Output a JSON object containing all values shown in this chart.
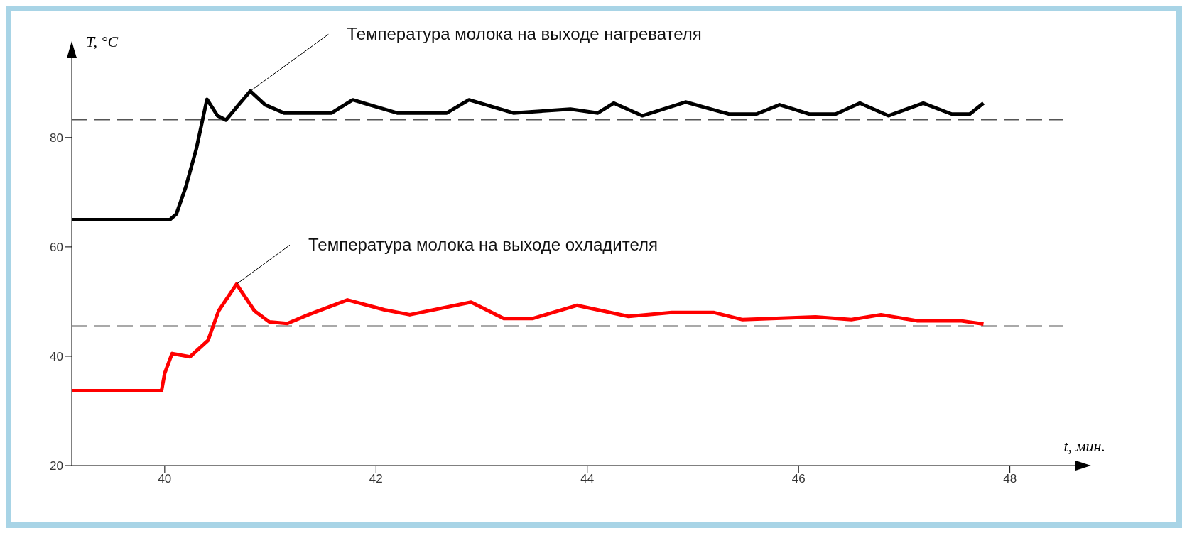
{
  "chart_data": {
    "type": "line",
    "xlabel": "t, мин.",
    "ylabel": "T, °C",
    "xlim": [
      39.12,
      48.5
    ],
    "ylim": [
      20,
      94
    ],
    "xticks": [
      40,
      42,
      44,
      46,
      48
    ],
    "yticks": [
      20,
      40,
      60,
      80
    ],
    "grid": false,
    "legend": false,
    "marker": "none",
    "line_style": "solid",
    "series": [
      {
        "color": "#000000",
        "x": [
          39.12,
          40.05,
          40.11,
          40.2,
          40.3,
          40.4,
          40.5,
          40.58,
          40.7,
          40.81,
          40.95,
          41.13,
          41.58,
          41.78,
          42.2,
          42.67,
          42.88,
          43.3,
          43.84,
          44.1,
          44.25,
          44.52,
          44.93,
          45.34,
          45.6,
          45.82,
          46.1,
          46.35,
          46.58,
          46.85,
          47.18,
          47.45,
          47.62,
          47.75
        ],
        "values": [
          65,
          65,
          66,
          71,
          78,
          87,
          84,
          83.2,
          86,
          88.5,
          86,
          84.5,
          84.5,
          86.9,
          84.5,
          84.5,
          86.9,
          84.5,
          85.2,
          84.5,
          86.3,
          84,
          86.5,
          84.3,
          84.3,
          86,
          84.3,
          84.3,
          86.3,
          84,
          86.3,
          84.3,
          84.3,
          86.3
        ]
      },
      {
        "color": "#ff0000",
        "x": [
          39.12,
          39.97,
          40.0,
          40.07,
          40.24,
          40.41,
          40.51,
          40.68,
          40.85,
          40.99,
          41.16,
          41.36,
          41.73,
          42.08,
          42.32,
          42.9,
          43.21,
          43.48,
          43.9,
          44.39,
          44.8,
          45.2,
          45.47,
          46.16,
          46.5,
          46.78,
          47.12,
          47.53,
          47.75
        ],
        "values": [
          33.7,
          33.7,
          36.9,
          40.5,
          39.9,
          42.9,
          48.3,
          53.2,
          48.3,
          46.3,
          46,
          47.6,
          50.3,
          48.5,
          47.6,
          49.9,
          46.9,
          46.9,
          49.3,
          47.3,
          48,
          48,
          46.7,
          47.2,
          46.7,
          47.6,
          46.5,
          46.5,
          45.9
        ]
      }
    ],
    "ref_lines": [
      {
        "axis": "y",
        "value": 83.3,
        "color": "#555555",
        "line_style": "dashed"
      },
      {
        "axis": "y",
        "value": 45.5,
        "color": "#555555",
        "line_style": "dashed"
      }
    ],
    "annotations": [
      {
        "text": "Температура молока на выходе нагревателя",
        "x": 40.81,
        "y": 88.5
      },
      {
        "text": "Температура молока на выходе охладителя",
        "x": 40.68,
        "y": 53.2
      }
    ]
  }
}
